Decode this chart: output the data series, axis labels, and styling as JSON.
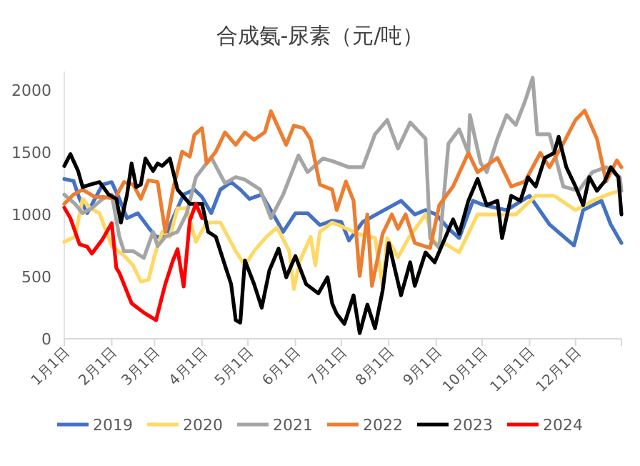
{
  "chart_data": {
    "type": "line",
    "title": "合成氨-尿素（元/吨）",
    "xlim": [
      "--01-01",
      "--12-31"
    ],
    "xticks": [
      {
        "value": "--01-01",
        "label": "1月1日"
      },
      {
        "value": "--02-01",
        "label": "2月1日"
      },
      {
        "value": "--03-01",
        "label": "3月1日"
      },
      {
        "value": "--04-01",
        "label": "4月1日"
      },
      {
        "value": "--05-01",
        "label": "5月1日"
      },
      {
        "value": "--06-01",
        "label": "6月1日"
      },
      {
        "value": "--07-01",
        "label": "7月1日"
      },
      {
        "value": "--08-01",
        "label": "8月1日"
      },
      {
        "value": "--09-01",
        "label": "9月1日"
      },
      {
        "value": "--10-01",
        "label": "10月1日"
      },
      {
        "value": "--11-01",
        "label": "11月1日"
      },
      {
        "value": "--12-01",
        "label": "12月1日"
      },
      {
        "value": "--12-31",
        "label": null
      }
    ],
    "ylim": [
      0,
      2150
    ],
    "yticks": [
      0,
      500,
      1000,
      1500,
      2000
    ],
    "grid": false,
    "legend": "bottom",
    "marker": "none",
    "line_style": "solid",
    "series": [
      {
        "name": "2019",
        "color": "#4472c4",
        "x": [
          "--01-01",
          "--01-07",
          "--01-11",
          "--01-16",
          "--01-21",
          "--01-26",
          "--02-01",
          "--02-06",
          "--02-11",
          "--02-18",
          "--02-25",
          "--03-02",
          "--03-08",
          "--03-13",
          "--03-20",
          "--03-27",
          "--04-01",
          "--04-07",
          "--04-13",
          "--04-20",
          "--04-26",
          "--05-02",
          "--05-10",
          "--05-18",
          "--05-24",
          "--06-01",
          "--06-09",
          "--06-17",
          "--06-25",
          "--07-01",
          "--07-06",
          "--07-15",
          "--07-26",
          "--08-09",
          "--08-18",
          "--08-25",
          "--09-01",
          "--09-09",
          "--09-16",
          "--09-25",
          "--10-02",
          "--10-17",
          "--11-01",
          "--11-14",
          "--11-30",
          "--12-06",
          "--12-18",
          "--12-24",
          "--12-31"
        ],
        "values": [
          1285,
          1270,
          1125,
          1010,
          1125,
          1240,
          1260,
          1125,
          970,
          1010,
          895,
          820,
          820,
          970,
          1160,
          1200,
          1140,
          1010,
          1200,
          1260,
          1200,
          1125,
          1160,
          990,
          860,
          1010,
          1010,
          915,
          950,
          940,
          790,
          940,
          1015,
          1110,
          1000,
          1035,
          1000,
          885,
          810,
          1110,
          1075,
          1035,
          1150,
          920,
          750,
          1035,
          1110,
          920,
          770
        ]
      },
      {
        "name": "2020",
        "color": "#ffd966",
        "x": [
          "--01-01",
          "--01-08",
          "--01-13",
          "--01-18",
          "--01-24",
          "--02-01",
          "--02-09",
          "--02-15",
          "--02-20",
          "--02-25",
          "--03-01",
          "--03-06",
          "--03-11",
          "--03-16",
          "--03-22",
          "--03-28",
          "--04-04",
          "--04-13",
          "--04-23",
          "--04-29",
          "--05-05",
          "--05-13",
          "--05-20",
          "--05-28",
          "--05-31",
          "--06-04",
          "--06-11",
          "--06-14",
          "--06-17",
          "--06-25",
          "--07-01",
          "--07-12",
          "--07-23",
          "--07-28",
          "--07-31",
          "--08-07",
          "--08-14",
          "--08-25",
          "--08-31",
          "--09-06",
          "--09-16",
          "--09-28",
          "--10-11",
          "--10-23",
          "--11-05",
          "--11-17",
          "--12-01",
          "--12-12",
          "--12-24",
          "--12-31"
        ],
        "values": [
          780,
          820,
          1125,
          1050,
          1010,
          745,
          670,
          590,
          460,
          475,
          670,
          860,
          820,
          1050,
          1050,
          780,
          935,
          935,
          705,
          590,
          705,
          820,
          895,
          705,
          400,
          630,
          820,
          590,
          860,
          935,
          905,
          845,
          810,
          425,
          810,
          655,
          810,
          1000,
          770,
          770,
          695,
          1000,
          1000,
          1000,
          1150,
          1150,
          1035,
          1110,
          1170,
          1190
        ]
      },
      {
        "name": "2021",
        "color": "#a5a5a5",
        "x": [
          "--01-01",
          "--01-08",
          "--01-13",
          "--01-19",
          "--01-26",
          "--02-01",
          "--02-06",
          "--02-09",
          "--02-15",
          "--02-22",
          "--02-28",
          "--03-03",
          "--03-08",
          "--03-16",
          "--03-22",
          "--03-28",
          "--04-07",
          "--04-16",
          "--04-23",
          "--04-29",
          "--05-09",
          "--05-16",
          "--05-24",
          "--06-03",
          "--06-09",
          "--06-19",
          "--06-25",
          "--07-06",
          "--07-15",
          "--07-23",
          "--07-31",
          "--08-07",
          "--08-15",
          "--08-25",
          "--08-28",
          "--09-03",
          "--09-09",
          "--09-16",
          "--09-22",
          "--09-23",
          "--09-30",
          "--10-04",
          "--10-11",
          "--10-17",
          "--10-23",
          "--10-29",
          "--11-03",
          "--11-06",
          "--11-14",
          "--11-23",
          "--12-03",
          "--12-12",
          "--12-21",
          "--12-30",
          "--12-31"
        ],
        "values": [
          1160,
          1085,
          1010,
          1050,
          1125,
          1160,
          820,
          705,
          705,
          650,
          860,
          745,
          820,
          860,
          1010,
          1300,
          1460,
          1250,
          1300,
          1280,
          1200,
          970,
          1160,
          1475,
          1340,
          1450,
          1430,
          1380,
          1380,
          1645,
          1760,
          1530,
          1740,
          1610,
          810,
          730,
          1570,
          1685,
          1495,
          1800,
          1415,
          1340,
          1610,
          1800,
          1720,
          1910,
          2100,
          1645,
          1645,
          1225,
          1190,
          1340,
          1380,
          1300,
          1190
        ]
      },
      {
        "name": "2022",
        "color": "#ed7d31",
        "x": [
          "--01-01",
          "--01-07",
          "--01-13",
          "--01-21",
          "--01-27",
          "--02-03",
          "--02-09",
          "--02-15",
          "--02-20",
          "--02-25",
          "--03-03",
          "--03-08",
          "--03-13",
          "--03-19",
          "--03-24",
          "--03-27",
          "--04-01",
          "--04-04",
          "--04-10",
          "--04-16",
          "--04-23",
          "--04-29",
          "--05-05",
          "--05-12",
          "--05-16",
          "--05-21",
          "--05-26",
          "--05-31",
          "--06-06",
          "--06-11",
          "--06-17",
          "--06-25",
          "--06-28",
          "--07-04",
          "--07-09",
          "--07-13",
          "--07-18",
          "--07-21",
          "--07-28",
          "--08-03",
          "--08-07",
          "--08-12",
          "--08-18",
          "--08-28",
          "--09-03",
          "--09-12",
          "--09-22",
          "--09-28",
          "--10-11",
          "--10-20",
          "--10-29",
          "--11-08",
          "--11-14",
          "--11-23",
          "--12-01",
          "--12-07",
          "--12-15",
          "--12-21",
          "--12-28",
          "--12-31"
        ],
        "values": [
          1085,
          1160,
          1200,
          1140,
          1140,
          1125,
          1260,
          1240,
          1125,
          1275,
          1260,
          860,
          1200,
          1505,
          1465,
          1640,
          1695,
          1410,
          1505,
          1660,
          1560,
          1660,
          1600,
          1660,
          1830,
          1695,
          1560,
          1715,
          1695,
          1600,
          1240,
          1200,
          1035,
          1265,
          1110,
          505,
          1000,
          425,
          845,
          1000,
          885,
          1000,
          770,
          730,
          1075,
          1225,
          1495,
          1340,
          1455,
          1225,
          1265,
          1495,
          1380,
          1570,
          1760,
          1835,
          1610,
          1265,
          1435,
          1380
        ]
      },
      {
        "name": "2023",
        "color": "#000000",
        "x": [
          "--01-01",
          "--01-05",
          "--01-10",
          "--01-13",
          "--01-18",
          "--01-24",
          "--01-30",
          "--02-04",
          "--02-07",
          "--02-11",
          "--02-14",
          "--02-17",
          "--02-20",
          "--02-23",
          "--02-28",
          "--03-03",
          "--03-06",
          "--03-11",
          "--03-16",
          "--03-24",
          "--04-01",
          "--04-05",
          "--04-10",
          "--04-16",
          "--04-20",
          "--04-23",
          "--04-26",
          "--04-29",
          "--05-05",
          "--05-10",
          "--05-15",
          "--05-21",
          "--05-26",
          "--06-01",
          "--06-08",
          "--06-16",
          "--06-22",
          "--06-25",
          "--06-28",
          "--07-03",
          "--07-09",
          "--07-13",
          "--07-18",
          "--07-23",
          "--07-28",
          "--08-01",
          "--08-09",
          "--08-15",
          "--08-18",
          "--08-25",
          "--08-31",
          "--09-08",
          "--09-12",
          "--09-16",
          "--09-22",
          "--09-28",
          "--10-04",
          "--10-11",
          "--10-14",
          "--10-20",
          "--10-26",
          "--10-31",
          "--11-05",
          "--11-11",
          "--11-17",
          "--11-20",
          "--11-25",
          "--12-01",
          "--12-06",
          "--12-10",
          "--12-15",
          "--12-20",
          "--12-24",
          "--12-29",
          "--12-31"
        ],
        "values": [
          1390,
          1485,
          1350,
          1220,
          1240,
          1260,
          1160,
          1125,
          935,
          1160,
          1410,
          1220,
          1240,
          1450,
          1350,
          1410,
          1390,
          1450,
          1200,
          1085,
          1085,
          860,
          820,
          590,
          440,
          150,
          130,
          630,
          440,
          250,
          550,
          725,
          495,
          665,
          440,
          365,
          495,
          285,
          200,
          120,
          350,
          45,
          275,
          85,
          390,
          770,
          350,
          615,
          425,
          695,
          615,
          845,
          960,
          845,
          1110,
          1285,
          1075,
          1110,
          810,
          1150,
          1110,
          1300,
          1225,
          1455,
          1495,
          1625,
          1380,
          1225,
          1075,
          1300,
          1190,
          1265,
          1380,
          1300,
          1000
        ]
      },
      {
        "name": "2024",
        "color": "#ff0000",
        "x": [
          "--01-01",
          "--01-05",
          "--01-11",
          "--01-16",
          "--01-19",
          "--01-26",
          "--02-01",
          "--02-04",
          "--02-06",
          "--02-14",
          "--02-22",
          "--03-02",
          "--03-04",
          "--03-08",
          "--03-13",
          "--03-16",
          "--03-20",
          "--03-24",
          "--03-28",
          "--04-01"
        ],
        "values": [
          1055,
          970,
          760,
          740,
          685,
          800,
          930,
          570,
          530,
          285,
          210,
          150,
          250,
          440,
          630,
          720,
          420,
          950,
          1085,
          970
        ]
      }
    ]
  }
}
